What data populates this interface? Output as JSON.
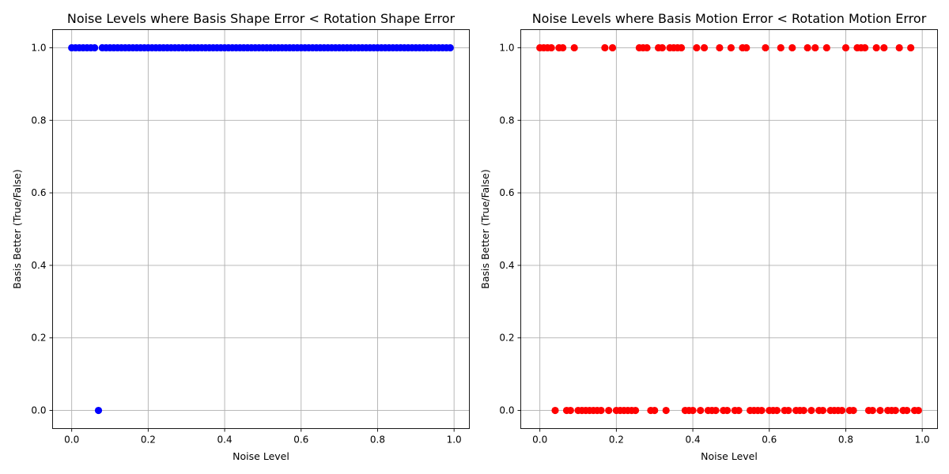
{
  "chart_data": [
    {
      "type": "scatter",
      "title": "Noise Levels where Basis Shape Error < Rotation Shape Error",
      "xlabel": "Noise Level",
      "ylabel": "Basis Better (True/False)",
      "xlim": [
        -0.05,
        1.04
      ],
      "ylim": [
        -0.05,
        1.05
      ],
      "xticks": [
        0.0,
        0.2,
        0.4,
        0.6,
        0.8,
        1.0
      ],
      "xtick_labels": [
        "0.0",
        "0.2",
        "0.4",
        "0.6",
        "0.8",
        "1.0"
      ],
      "yticks": [
        0.0,
        0.2,
        0.4,
        0.6,
        0.8,
        1.0
      ],
      "ytick_labels": [
        "0.0",
        "0.2",
        "0.4",
        "0.6",
        "0.8",
        "1.0"
      ],
      "grid": true,
      "color": "#0000ff",
      "points": [
        [
          0.0,
          1
        ],
        [
          0.01,
          1
        ],
        [
          0.02,
          1
        ],
        [
          0.03,
          1
        ],
        [
          0.04,
          1
        ],
        [
          0.05,
          1
        ],
        [
          0.06,
          1
        ],
        [
          0.07,
          0
        ],
        [
          0.08,
          1
        ],
        [
          0.09,
          1
        ],
        [
          0.1,
          1
        ],
        [
          0.11,
          1
        ],
        [
          0.12,
          1
        ],
        [
          0.13,
          1
        ],
        [
          0.14,
          1
        ],
        [
          0.15,
          1
        ],
        [
          0.16,
          1
        ],
        [
          0.17,
          1
        ],
        [
          0.18,
          1
        ],
        [
          0.19,
          1
        ],
        [
          0.2,
          1
        ],
        [
          0.21,
          1
        ],
        [
          0.22,
          1
        ],
        [
          0.23,
          1
        ],
        [
          0.24,
          1
        ],
        [
          0.25,
          1
        ],
        [
          0.26,
          1
        ],
        [
          0.27,
          1
        ],
        [
          0.28,
          1
        ],
        [
          0.29,
          1
        ],
        [
          0.3,
          1
        ],
        [
          0.31,
          1
        ],
        [
          0.32,
          1
        ],
        [
          0.33,
          1
        ],
        [
          0.34,
          1
        ],
        [
          0.35,
          1
        ],
        [
          0.36,
          1
        ],
        [
          0.37,
          1
        ],
        [
          0.38,
          1
        ],
        [
          0.39,
          1
        ],
        [
          0.4,
          1
        ],
        [
          0.41,
          1
        ],
        [
          0.42,
          1
        ],
        [
          0.43,
          1
        ],
        [
          0.44,
          1
        ],
        [
          0.45,
          1
        ],
        [
          0.46,
          1
        ],
        [
          0.47,
          1
        ],
        [
          0.48,
          1
        ],
        [
          0.49,
          1
        ],
        [
          0.5,
          1
        ],
        [
          0.51,
          1
        ],
        [
          0.52,
          1
        ],
        [
          0.53,
          1
        ],
        [
          0.54,
          1
        ],
        [
          0.55,
          1
        ],
        [
          0.56,
          1
        ],
        [
          0.57,
          1
        ],
        [
          0.58,
          1
        ],
        [
          0.59,
          1
        ],
        [
          0.6,
          1
        ],
        [
          0.61,
          1
        ],
        [
          0.62,
          1
        ],
        [
          0.63,
          1
        ],
        [
          0.64,
          1
        ],
        [
          0.65,
          1
        ],
        [
          0.66,
          1
        ],
        [
          0.67,
          1
        ],
        [
          0.68,
          1
        ],
        [
          0.69,
          1
        ],
        [
          0.7,
          1
        ],
        [
          0.71,
          1
        ],
        [
          0.72,
          1
        ],
        [
          0.73,
          1
        ],
        [
          0.74,
          1
        ],
        [
          0.75,
          1
        ],
        [
          0.76,
          1
        ],
        [
          0.77,
          1
        ],
        [
          0.78,
          1
        ],
        [
          0.79,
          1
        ],
        [
          0.8,
          1
        ],
        [
          0.81,
          1
        ],
        [
          0.82,
          1
        ],
        [
          0.83,
          1
        ],
        [
          0.84,
          1
        ],
        [
          0.85,
          1
        ],
        [
          0.86,
          1
        ],
        [
          0.87,
          1
        ],
        [
          0.88,
          1
        ],
        [
          0.89,
          1
        ],
        [
          0.9,
          1
        ],
        [
          0.91,
          1
        ],
        [
          0.92,
          1
        ],
        [
          0.93,
          1
        ],
        [
          0.94,
          1
        ],
        [
          0.95,
          1
        ],
        [
          0.96,
          1
        ],
        [
          0.97,
          1
        ],
        [
          0.98,
          1
        ],
        [
          0.99,
          1
        ]
      ]
    },
    {
      "type": "scatter",
      "title": "Noise Levels where Basis Motion Error < Rotation Motion Error",
      "xlabel": "Noise Level",
      "ylabel": "Basis Better (True/False)",
      "xlim": [
        -0.05,
        1.04
      ],
      "ylim": [
        -0.05,
        1.05
      ],
      "xticks": [
        0.0,
        0.2,
        0.4,
        0.6,
        0.8,
        1.0
      ],
      "xtick_labels": [
        "0.0",
        "0.2",
        "0.4",
        "0.6",
        "0.8",
        "1.0"
      ],
      "yticks": [
        0.0,
        0.2,
        0.4,
        0.6,
        0.8,
        1.0
      ],
      "ytick_labels": [
        "0.0",
        "0.2",
        "0.4",
        "0.6",
        "0.8",
        "1.0"
      ],
      "grid": true,
      "color": "#ff0000",
      "points": [
        [
          0.0,
          1
        ],
        [
          0.01,
          1
        ],
        [
          0.02,
          1
        ],
        [
          0.03,
          1
        ],
        [
          0.04,
          0
        ],
        [
          0.05,
          1
        ],
        [
          0.06,
          1
        ],
        [
          0.07,
          0
        ],
        [
          0.08,
          0
        ],
        [
          0.09,
          1
        ],
        [
          0.1,
          0
        ],
        [
          0.11,
          0
        ],
        [
          0.12,
          0
        ],
        [
          0.13,
          0
        ],
        [
          0.14,
          0
        ],
        [
          0.15,
          0
        ],
        [
          0.16,
          0
        ],
        [
          0.17,
          1
        ],
        [
          0.18,
          0
        ],
        [
          0.19,
          1
        ],
        [
          0.2,
          0
        ],
        [
          0.21,
          0
        ],
        [
          0.22,
          0
        ],
        [
          0.23,
          0
        ],
        [
          0.24,
          0
        ],
        [
          0.25,
          0
        ],
        [
          0.26,
          1
        ],
        [
          0.27,
          1
        ],
        [
          0.28,
          1
        ],
        [
          0.29,
          0
        ],
        [
          0.3,
          0
        ],
        [
          0.31,
          1
        ],
        [
          0.32,
          1
        ],
        [
          0.33,
          0
        ],
        [
          0.34,
          1
        ],
        [
          0.35,
          1
        ],
        [
          0.36,
          1
        ],
        [
          0.37,
          1
        ],
        [
          0.38,
          0
        ],
        [
          0.39,
          0
        ],
        [
          0.4,
          0
        ],
        [
          0.41,
          1
        ],
        [
          0.42,
          0
        ],
        [
          0.43,
          1
        ],
        [
          0.44,
          0
        ],
        [
          0.45,
          0
        ],
        [
          0.46,
          0
        ],
        [
          0.47,
          1
        ],
        [
          0.48,
          0
        ],
        [
          0.49,
          0
        ],
        [
          0.5,
          1
        ],
        [
          0.51,
          0
        ],
        [
          0.52,
          0
        ],
        [
          0.53,
          1
        ],
        [
          0.54,
          1
        ],
        [
          0.55,
          0
        ],
        [
          0.56,
          0
        ],
        [
          0.57,
          0
        ],
        [
          0.58,
          0
        ],
        [
          0.59,
          1
        ],
        [
          0.6,
          0
        ],
        [
          0.61,
          0
        ],
        [
          0.62,
          0
        ],
        [
          0.63,
          1
        ],
        [
          0.64,
          0
        ],
        [
          0.65,
          0
        ],
        [
          0.66,
          1
        ],
        [
          0.67,
          0
        ],
        [
          0.68,
          0
        ],
        [
          0.69,
          0
        ],
        [
          0.7,
          1
        ],
        [
          0.71,
          0
        ],
        [
          0.72,
          1
        ],
        [
          0.73,
          0
        ],
        [
          0.74,
          0
        ],
        [
          0.75,
          1
        ],
        [
          0.76,
          0
        ],
        [
          0.77,
          0
        ],
        [
          0.78,
          0
        ],
        [
          0.79,
          0
        ],
        [
          0.8,
          1
        ],
        [
          0.81,
          0
        ],
        [
          0.82,
          0
        ],
        [
          0.83,
          1
        ],
        [
          0.84,
          1
        ],
        [
          0.85,
          1
        ],
        [
          0.86,
          0
        ],
        [
          0.87,
          0
        ],
        [
          0.88,
          1
        ],
        [
          0.89,
          0
        ],
        [
          0.9,
          1
        ],
        [
          0.91,
          0
        ],
        [
          0.92,
          0
        ],
        [
          0.93,
          0
        ],
        [
          0.94,
          1
        ],
        [
          0.95,
          0
        ],
        [
          0.96,
          0
        ],
        [
          0.97,
          1
        ],
        [
          0.98,
          0
        ],
        [
          0.99,
          0
        ]
      ]
    }
  ]
}
